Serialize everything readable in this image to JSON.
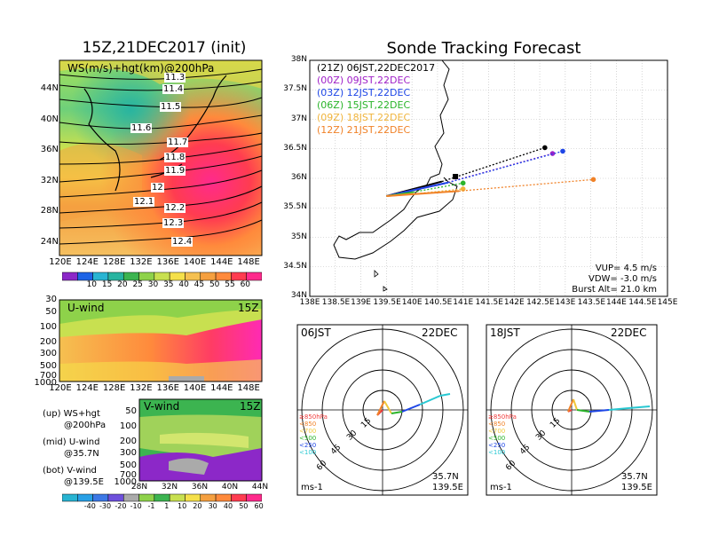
{
  "left": {
    "title": "15Z,21DEC2017 (init)",
    "map": {
      "label": "WS(m/s)+hgt(km)@200hPa",
      "lat_ticks": [
        "44N",
        "40N",
        "36N",
        "32N",
        "28N",
        "24N"
      ],
      "lon_ticks": [
        "120E",
        "124E",
        "128E",
        "132E",
        "136E",
        "140E",
        "144E",
        "148E"
      ],
      "contours": [
        "11.3",
        "11.4",
        "11.5",
        "11.6",
        "11.7",
        "11.8",
        "11.9",
        "12",
        "12.1",
        "12.2",
        "12.3",
        "12.4"
      ],
      "colorbar": [
        "10",
        "15",
        "20",
        "25",
        "30",
        "35",
        "40",
        "45",
        "50",
        "55",
        "60"
      ]
    },
    "uwind": {
      "label": "U-wind",
      "time": "15Z",
      "p_ticks": [
        "30",
        "50",
        "100",
        "200",
        "300",
        "500",
        "700",
        "1000"
      ],
      "lon_ticks": [
        "120E",
        "124E",
        "128E",
        "132E",
        "136E",
        "140E",
        "144E",
        "148E"
      ]
    },
    "vwind": {
      "label": "V-wind",
      "time": "15Z",
      "p_ticks": [
        "50",
        "100",
        "200",
        "300",
        "500",
        "700",
        "1000"
      ],
      "lat_ticks": [
        "28N",
        "32N",
        "36N",
        "40N",
        "44N"
      ],
      "colorbar": [
        "-40",
        "-30",
        "-20",
        "-10",
        "-1",
        "1",
        "10",
        "20",
        "30",
        "40",
        "50",
        "60"
      ]
    },
    "legend": [
      {
        "a": "(up) WS+hgt",
        "b": "@200hPa"
      },
      {
        "a": "(mid) U-wind",
        "b": "@35.7N"
      },
      {
        "a": "(bot) V-wind",
        "b": "@139.5E"
      }
    ]
  },
  "chart_data": {
    "type": "line",
    "title": "Sonde Tracking Forecast",
    "x_ticks": [
      "138E",
      "138.5E",
      "139E",
      "139.5E",
      "140E",
      "140.5E",
      "141E",
      "141.5E",
      "142E",
      "142.5E",
      "143E",
      "143.5E",
      "144E",
      "144.5E",
      "145E"
    ],
    "y_ticks": [
      "38N",
      "37.5N",
      "37N",
      "36.5N",
      "36N",
      "35.5N",
      "35N",
      "34.5N",
      "34N"
    ],
    "xlim": [
      138,
      145
    ],
    "ylim": [
      34,
      38
    ],
    "series": [
      {
        "name": "(21Z) 06JST,22DEC2017",
        "color": "#000000",
        "launch": [
          139.5,
          35.7
        ],
        "end": [
          142.6,
          36.52
        ]
      },
      {
        "name": "(00Z) 09JST,22DEC",
        "color": "#a020c8",
        "launch": [
          139.5,
          35.7
        ],
        "end": [
          142.75,
          36.42
        ]
      },
      {
        "name": "(03Z) 12JST,22DEC",
        "color": "#1e46e6",
        "launch": [
          139.5,
          35.7
        ],
        "end": [
          142.95,
          36.46
        ]
      },
      {
        "name": "(06Z) 15JST,22DEC",
        "color": "#2ab42a",
        "launch": [
          139.5,
          35.7
        ],
        "end": [
          141.0,
          35.92
        ]
      },
      {
        "name": "(09Z) 18JST,22DEC",
        "color": "#f0b43c",
        "launch": [
          139.5,
          35.7
        ],
        "end": [
          141.0,
          35.82
        ]
      },
      {
        "name": "(12Z) 21JST,22DEC",
        "color": "#f08228",
        "launch": [
          139.5,
          35.7
        ],
        "end": [
          143.55,
          35.98
        ]
      }
    ],
    "info": [
      "VUP= 4.5 m/s",
      "VDW= -3.0 m/s",
      "Burst Alt= 21.0 km"
    ]
  },
  "hodographs": [
    {
      "time": "06JST",
      "date": "22DEC",
      "rings": [
        "15",
        "30",
        "45",
        "60"
      ],
      "unit": "ms-1",
      "lat": "35.7N",
      "lon": "139.5E",
      "legend": [
        "≥850hPa",
        "<850",
        "<700",
        "<500",
        "<250",
        "<100"
      ]
    },
    {
      "time": "18JST",
      "date": "22DEC",
      "rings": [
        "15",
        "30",
        "45",
        "60"
      ],
      "unit": "ms-1",
      "lat": "35.7N",
      "lon": "139.5E",
      "legend": [
        "≥850hPa",
        "<850",
        "<700",
        "<500",
        "<250",
        "<100"
      ]
    }
  ]
}
